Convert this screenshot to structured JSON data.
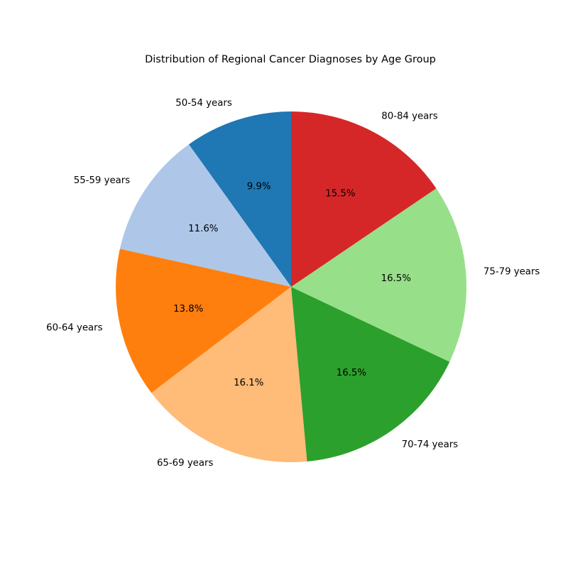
{
  "chart_data": {
    "type": "pie",
    "title": "Distribution of Regional Cancer Diagnoses by Age Group",
    "start_angle_deg": 90,
    "direction": "counterclockwise",
    "categories": [
      "50-54 years",
      "55-59 years",
      "60-64 years",
      "65-69 years",
      "70-74 years",
      "75-79 years",
      "80-84 years"
    ],
    "values": [
      9.9,
      11.6,
      13.8,
      16.1,
      16.5,
      16.5,
      15.5
    ],
    "percent_labels": [
      "9.9%",
      "11.6%",
      "13.8%",
      "16.1%",
      "16.5%",
      "16.5%",
      "15.5%"
    ],
    "colors": [
      "#1f77b4",
      "#aec7e8",
      "#ff7f0e",
      "#ffbb78",
      "#2ca02c",
      "#98df8a",
      "#d62728"
    ],
    "legend": "none"
  }
}
